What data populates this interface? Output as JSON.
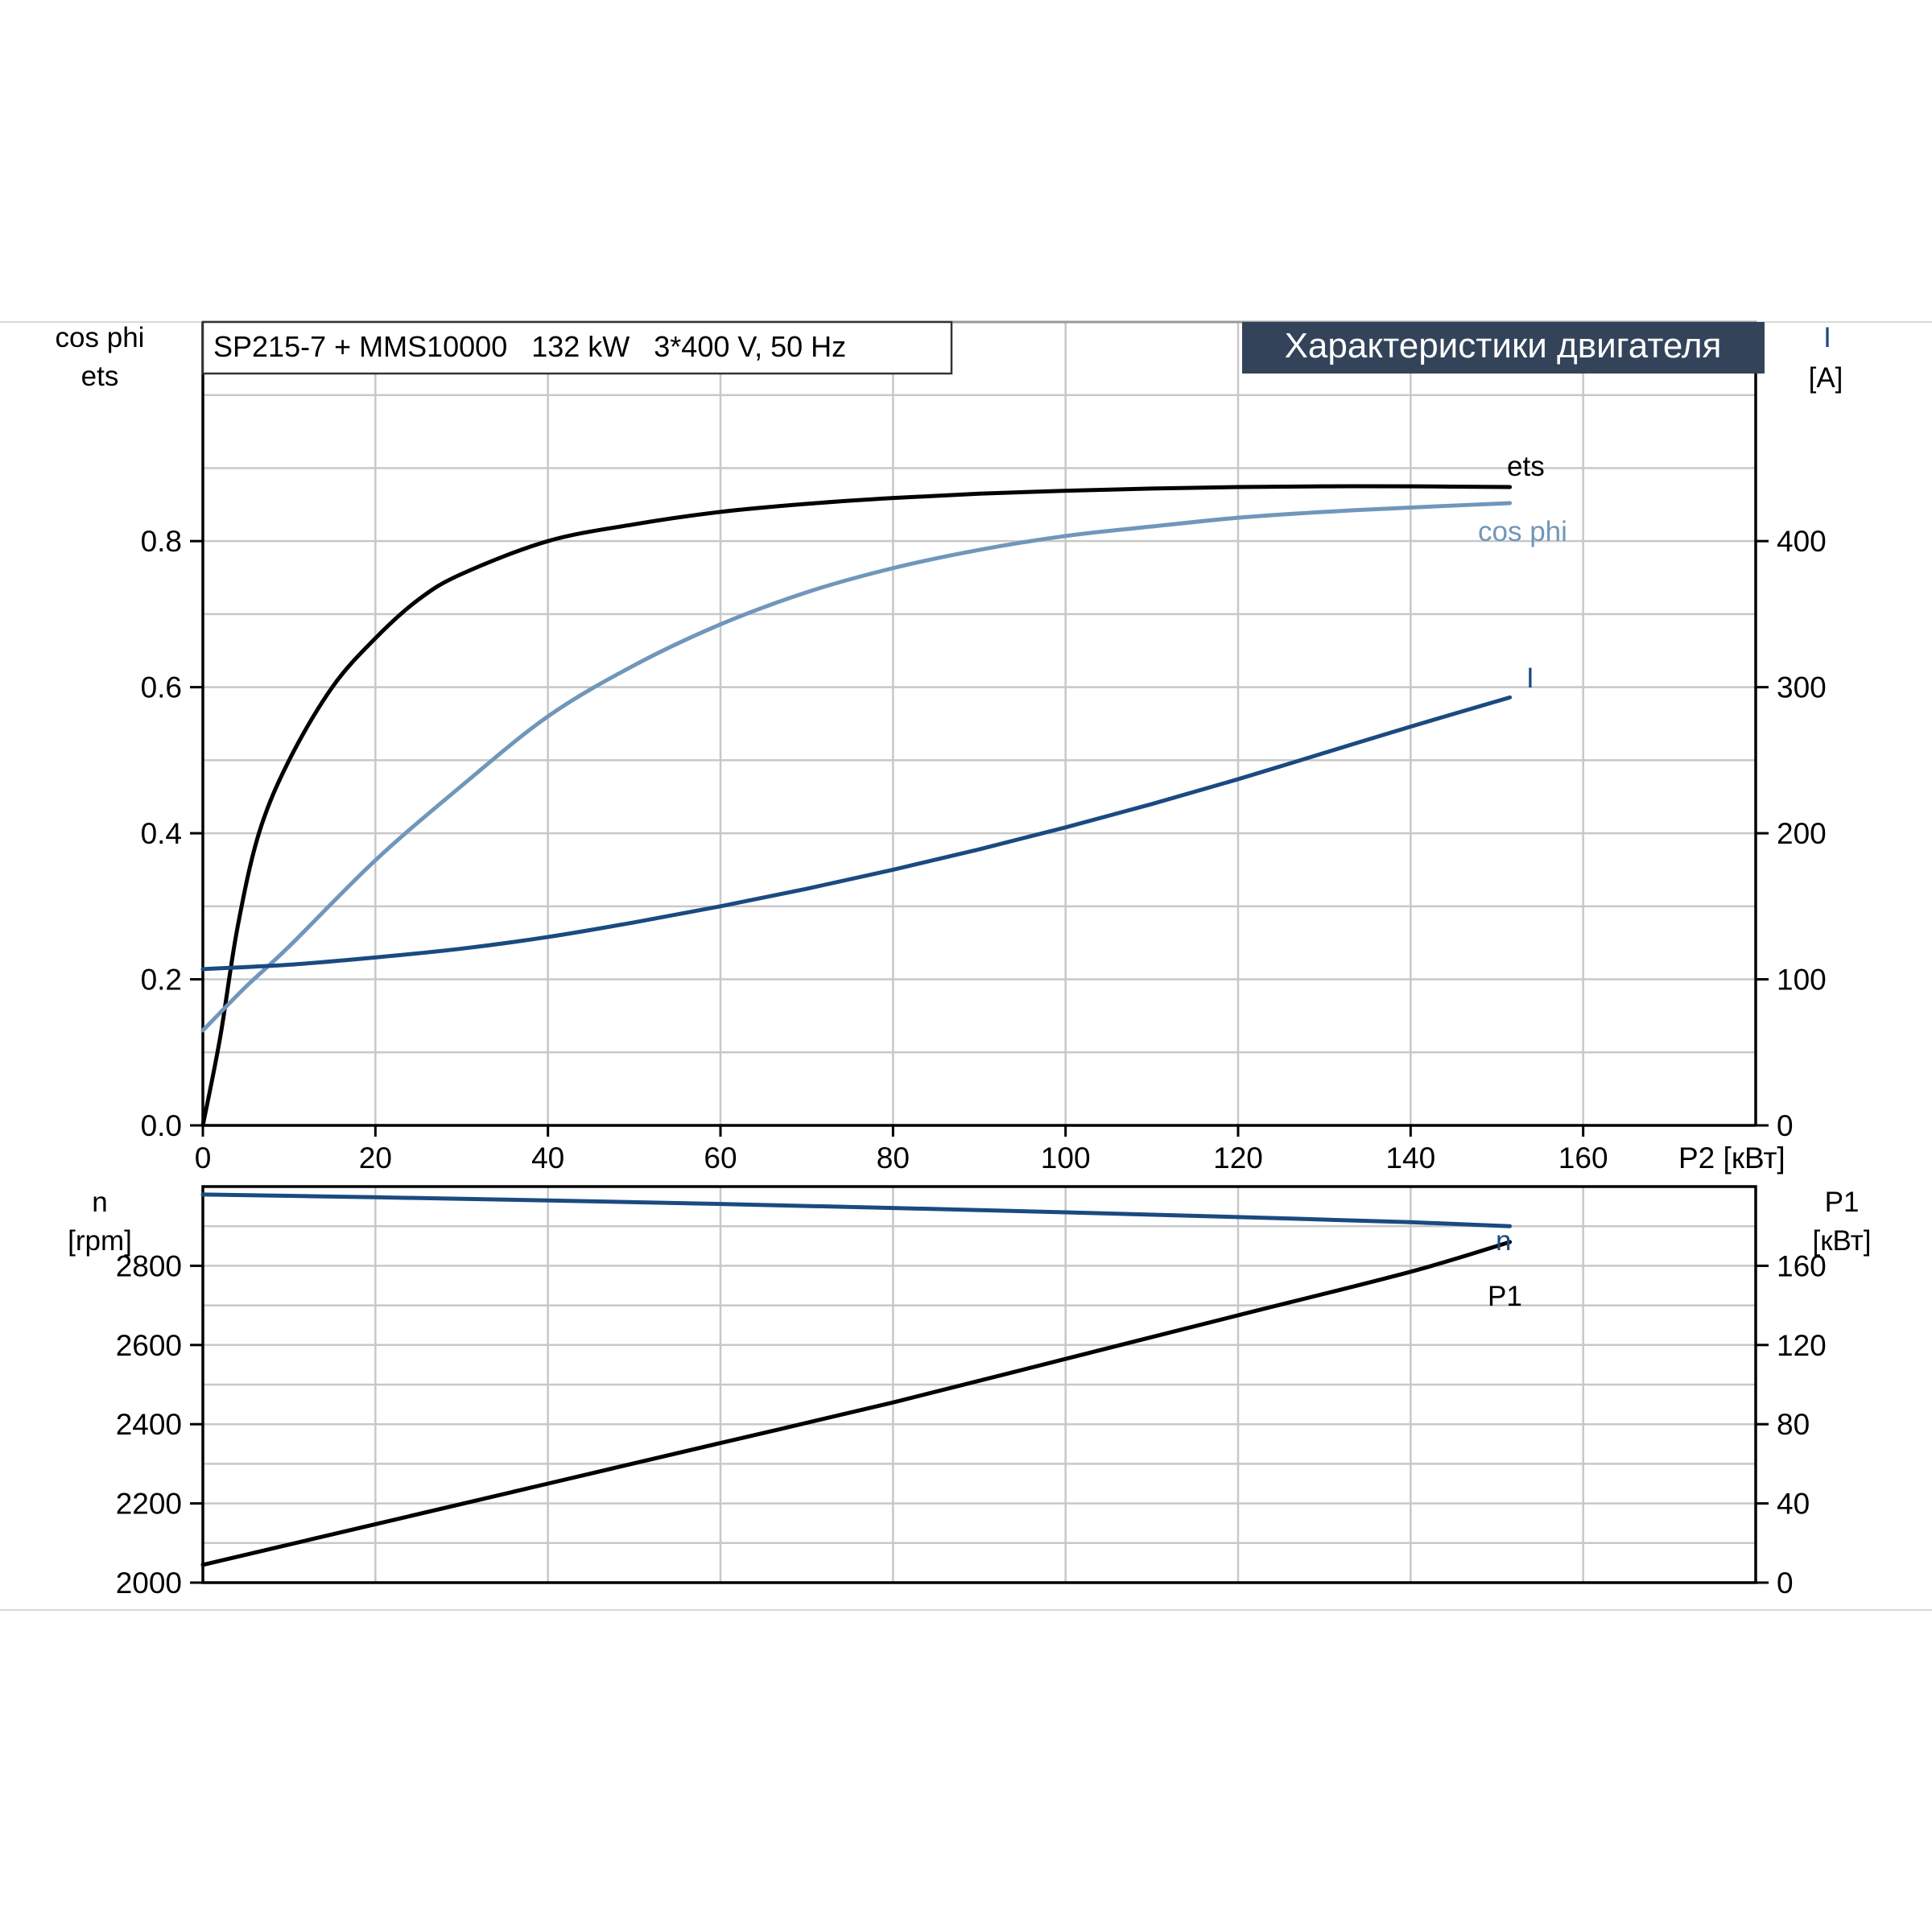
{
  "header": {
    "model": "SP215-7 + MMS10000   132 kW   3*400 V, 50 Hz",
    "title": "Характеристики двигателя"
  },
  "colors": {
    "ets": "#000000",
    "cos_phi": "#7096bb",
    "current": "#1a4a80",
    "speed": "#1a4a80",
    "p1": "#000000",
    "title_bg": "#33435a",
    "title_fg": "#ffffff"
  },
  "chart_data": [
    {
      "type": "line",
      "xlabel": "P2 [кВт]",
      "x_ticks": [
        "0",
        "20",
        "40",
        "60",
        "80",
        "100",
        "120",
        "140",
        "160"
      ],
      "xlim": [
        0,
        180
      ],
      "left_axis": {
        "label_lines": [
          "cos phi",
          "ets"
        ],
        "ylim": [
          0,
          1.1
        ],
        "ticks": [
          "0.0",
          "0.2",
          "0.4",
          "0.6",
          "0.8"
        ],
        "tick_values": [
          0,
          0.2,
          0.4,
          0.6,
          0.8
        ]
      },
      "right_axis": {
        "label_lines": [
          "I",
          "[A]"
        ],
        "ylim": [
          0,
          550
        ],
        "ticks": [
          "0",
          "100",
          "200",
          "300",
          "400"
        ],
        "tick_values": [
          0,
          100,
          200,
          300,
          400
        ]
      },
      "series": [
        {
          "name": "ets",
          "axis": "left",
          "color": "#000000",
          "x": [
            0,
            2,
            4,
            6.5,
            10,
            15,
            20,
            25,
            30,
            40,
            50,
            60,
            70,
            80,
            90,
            100,
            110,
            120,
            130,
            140,
            151.5
          ],
          "y": [
            0,
            0.12,
            0.27,
            0.4,
            0.5,
            0.6,
            0.667,
            0.72,
            0.755,
            0.8,
            0.823,
            0.84,
            0.851,
            0.859,
            0.865,
            0.869,
            0.872,
            0.874,
            0.875,
            0.875,
            0.874
          ]
        },
        {
          "name": "cos phi",
          "axis": "left",
          "color": "#7096bb",
          "x": [
            0,
            5,
            10,
            20,
            30,
            40,
            50,
            60,
            70,
            80,
            90,
            100,
            110,
            120,
            130,
            140,
            151.5
          ],
          "y": [
            0.13,
            0.19,
            0.245,
            0.363,
            0.465,
            0.56,
            0.63,
            0.686,
            0.73,
            0.763,
            0.788,
            0.807,
            0.82,
            0.832,
            0.84,
            0.846,
            0.852
          ]
        },
        {
          "name": "I",
          "axis": "right",
          "color": "#1a4a80",
          "x": [
            0,
            10,
            20,
            30,
            40,
            50,
            60,
            70,
            80,
            90,
            100,
            110,
            120,
            130,
            140,
            151.5
          ],
          "y": [
            107,
            110,
            115,
            121,
            129,
            139,
            150,
            162,
            175,
            189,
            204,
            220,
            237,
            255,
            273,
            293
          ]
        }
      ]
    },
    {
      "type": "line",
      "xlim": [
        0,
        180
      ],
      "left_axis": {
        "label_lines": [
          "n",
          "[rpm]"
        ],
        "ylim": [
          2000,
          3000
        ],
        "ticks": [
          "2000",
          "2200",
          "2400",
          "2600",
          "2800"
        ],
        "tick_values": [
          2000,
          2200,
          2400,
          2600,
          2800
        ]
      },
      "right_axis": {
        "label_lines": [
          "P1",
          "[кВт]"
        ],
        "ylim": [
          0,
          200
        ],
        "ticks": [
          "0",
          "40",
          "80",
          "120",
          "160"
        ],
        "tick_values": [
          0,
          40,
          80,
          120,
          160
        ]
      },
      "series": [
        {
          "name": "n",
          "axis": "left",
          "color": "#1a4a80",
          "x": [
            0,
            20,
            40,
            60,
            80,
            100,
            120,
            140,
            151.5
          ],
          "y": [
            2980,
            2973,
            2965,
            2956,
            2946,
            2935,
            2923,
            2910,
            2900
          ]
        },
        {
          "name": "P1",
          "axis": "right",
          "color": "#000000",
          "x": [
            0,
            20,
            40,
            60,
            80,
            100,
            120,
            140,
            151.5
          ],
          "y": [
            9,
            29.5,
            50,
            70.5,
            91,
            113,
            135,
            157,
            172
          ]
        }
      ]
    }
  ]
}
